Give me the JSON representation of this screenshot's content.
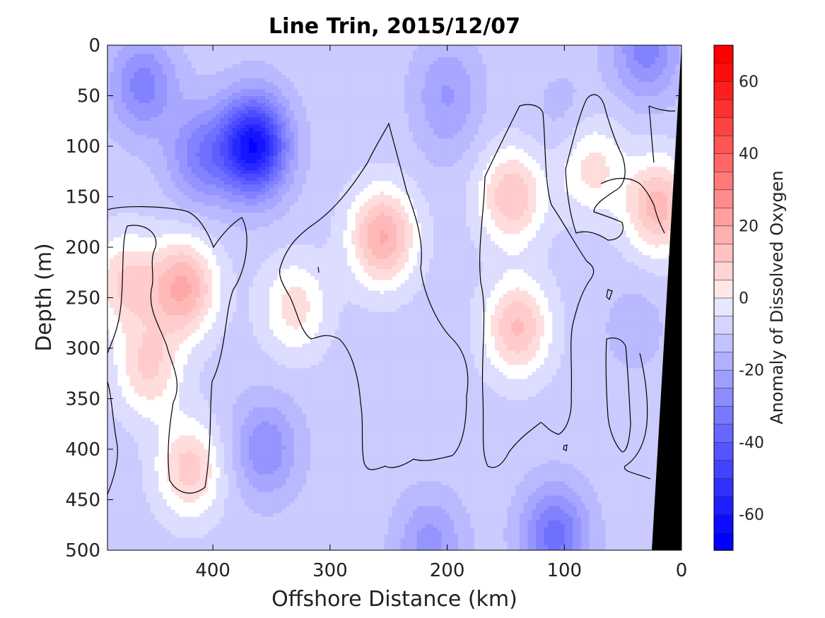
{
  "chart_data": {
    "type": "heatmap",
    "title": "Line Trin, 2015/12/07",
    "xlabel": "Offshore Distance (km)",
    "ylabel": "Depth (m)",
    "xlim": [
      490,
      0
    ],
    "ylim": [
      0,
      500
    ],
    "x_reversed": true,
    "y_reversed": true,
    "x_ticks": [
      400,
      300,
      200,
      100,
      0
    ],
    "y_ticks": [
      0,
      50,
      100,
      150,
      200,
      250,
      300,
      350,
      400,
      450,
      500
    ],
    "colorbar": {
      "label": "Anomaly of Dissolved Oxygen",
      "range": [
        -70,
        70
      ],
      "step": 5,
      "ticks": [
        60,
        40,
        20,
        0,
        -20,
        -40,
        -60
      ],
      "colormap": "blue-white-red",
      "neg_color": "#0000ff",
      "pos_color": "#ff0000",
      "mid_color": "#ffffff"
    },
    "zero_contour": true,
    "bathymetry_color": "#000000",
    "features": [
      {
        "x": 365,
        "depth": 100,
        "value": -62
      },
      {
        "x": 410,
        "depth": 110,
        "value": -30
      },
      {
        "x": 460,
        "depth": 40,
        "value": -30
      },
      {
        "x": 30,
        "depth": 5,
        "value": -30
      },
      {
        "x": 200,
        "depth": 40,
        "value": -20
      },
      {
        "x": 100,
        "depth": 70,
        "value": -15
      },
      {
        "x": 355,
        "depth": 400,
        "value": -27
      },
      {
        "x": 200,
        "depth": 80,
        "value": -15
      },
      {
        "x": 108,
        "depth": 485,
        "value": -35
      },
      {
        "x": 215,
        "depth": 495,
        "value": -25
      },
      {
        "x": 40,
        "depth": 280,
        "value": -15
      },
      {
        "x": 470,
        "depth": 320,
        "value": -10
      },
      {
        "x": 255,
        "depth": 190,
        "value": 18
      },
      {
        "x": 140,
        "depth": 280,
        "value": 13
      },
      {
        "x": 145,
        "depth": 150,
        "value": 12
      },
      {
        "x": 425,
        "depth": 240,
        "value": 18
      },
      {
        "x": 420,
        "depth": 420,
        "value": 10
      },
      {
        "x": 455,
        "depth": 320,
        "value": 8
      },
      {
        "x": 20,
        "depth": 160,
        "value": 15
      },
      {
        "x": 77,
        "depth": 120,
        "value": 5
      },
      {
        "x": 330,
        "depth": 260,
        "value": 5
      },
      {
        "x": 475,
        "depth": 235,
        "value": 8
      }
    ]
  }
}
